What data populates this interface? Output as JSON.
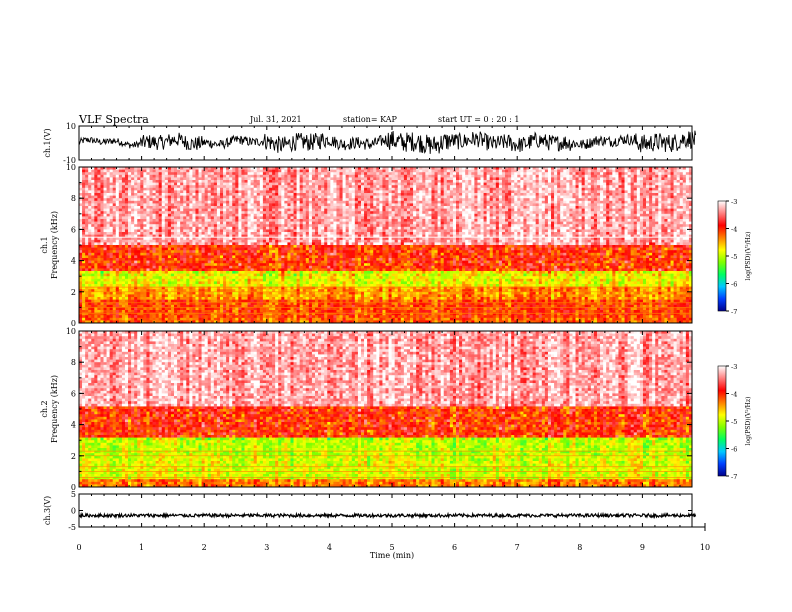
{
  "header": {
    "title": "VLF Spectra",
    "date": "Jul. 31, 2021",
    "station": "station= KAP",
    "start": "start  UT =   0 : 20 : 1"
  },
  "colorbar": {
    "label": "log(PSD)(V²/Hz)",
    "ticks": [
      "-3",
      "-4",
      "-5",
      "-6",
      "-7"
    ],
    "stops": [
      "#00008b",
      "#0040ff",
      "#00c8ff",
      "#00ff60",
      "#80ff00",
      "#ffff00",
      "#ff8000",
      "#ff0000",
      "#ff8080",
      "#ffffff"
    ]
  },
  "chart_data": [
    {
      "type": "line",
      "name": "ch1-waveform",
      "ylabel": "ch.1(V)",
      "ylim": [
        -10,
        10
      ],
      "yticks": [
        "10",
        "-10"
      ],
      "x_range_min": [
        0,
        9.85
      ],
      "envelope_note": "dense broadband waveform oscillating roughly between -7 and +8 V",
      "envelope_y": [
        [
          -2,
          3
        ],
        [
          -5,
          6
        ],
        [
          -3,
          4
        ],
        [
          -6,
          7
        ],
        [
          -4,
          5
        ],
        [
          -7,
          8
        ],
        [
          -5,
          7
        ],
        [
          -6,
          6
        ],
        [
          -3,
          5
        ],
        [
          -6,
          8
        ]
      ]
    },
    {
      "type": "heatmap",
      "name": "ch1-spectrogram",
      "ylabel": "ch.1\nFrequency (kHz)",
      "ylim": [
        0,
        10
      ],
      "xlim": [
        0,
        9.85
      ],
      "yticks": [
        "0",
        "2",
        "4",
        "6",
        "8",
        "10"
      ],
      "psd_range": [
        -7,
        -3
      ],
      "band_kHz": [
        {
          "f": [
            0.0,
            0.3
          ],
          "level": -4.2
        },
        {
          "f": [
            0.3,
            1.5
          ],
          "level": -4.1
        },
        {
          "f": [
            1.5,
            2.3
          ],
          "level": -4.4
        },
        {
          "f": [
            2.3,
            3.4
          ],
          "level": -4.8
        },
        {
          "f": [
            3.4,
            5.0
          ],
          "level": -4.0
        },
        {
          "f": [
            5.0,
            10.0
          ],
          "level": -3.3
        }
      ],
      "white_line_kHz": 5.5
    },
    {
      "type": "heatmap",
      "name": "ch2-spectrogram",
      "ylabel": "ch.2\nFrequency (kHz)",
      "ylim": [
        0,
        10
      ],
      "xlim": [
        0,
        9.85
      ],
      "yticks": [
        "0",
        "2",
        "4",
        "6",
        "8",
        "10"
      ],
      "psd_range": [
        -7,
        -3
      ],
      "band_kHz": [
        {
          "f": [
            0.0,
            0.5
          ],
          "level": -4.3
        },
        {
          "f": [
            0.5,
            2.0
          ],
          "level": -4.9
        },
        {
          "f": [
            2.0,
            3.2
          ],
          "level": -5.0
        },
        {
          "f": [
            3.2,
            5.2
          ],
          "level": -4.0
        },
        {
          "f": [
            5.2,
            10.0
          ],
          "level": -3.3
        }
      ]
    },
    {
      "type": "line",
      "name": "ch3-waveform",
      "ylabel": "ch.3(V)",
      "ylim": [
        -5,
        5
      ],
      "yticks": [
        "5",
        "0",
        "-5"
      ],
      "x_range_min": [
        0,
        9.85
      ],
      "envelope_note": "narrow band near -1.5 V",
      "envelope_y": [
        [
          -2,
          -1
        ],
        [
          -2,
          -1
        ]
      ]
    }
  ],
  "xaxis": {
    "label": "Time (min)",
    "ticks": [
      "0",
      "1",
      "2",
      "3",
      "4",
      "5",
      "6",
      "7",
      "8",
      "9",
      "10"
    ],
    "xlim": [
      0,
      10
    ]
  }
}
